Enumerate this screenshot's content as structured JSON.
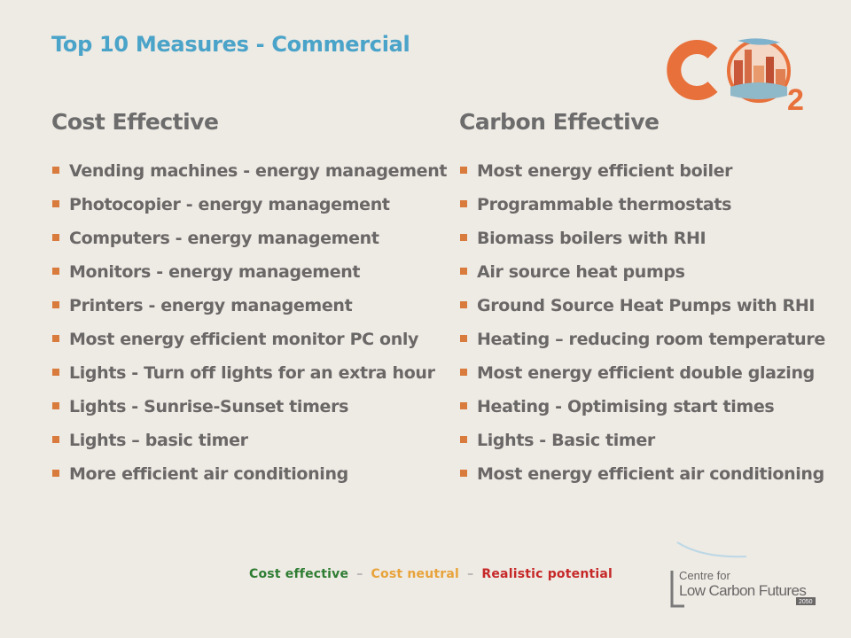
{
  "title": "Top 10 Measures - Commercial",
  "columns": {
    "left": {
      "heading": "Cost Effective",
      "items": [
        "Vending machines - energy management",
        "Photocopier - energy management",
        "Computers - energy management",
        "Monitors - energy management",
        "Printers - energy management",
        "Most energy efficient monitor PC only",
        "Lights - Turn off lights for an extra hour",
        "Lights - Sunrise-Sunset timers",
        "Lights – basic timer",
        "More efficient air conditioning"
      ]
    },
    "right": {
      "heading": "Carbon Effective",
      "items": [
        "Most energy efficient boiler",
        "Programmable thermostats",
        "Biomass boilers with RHI",
        "Air source heat pumps",
        "Ground Source Heat Pumps with RHI",
        "Heating – reducing room temperature",
        "Most energy efficient double glazing",
        "Heating - Optimising start times",
        "Lights - Basic timer",
        "Most energy efficient air conditioning"
      ]
    }
  },
  "legend": {
    "cost_effective": "Cost effective",
    "cost_neutral": "Cost neutral",
    "realistic_potential": "Realistic potential",
    "separator": "–"
  },
  "logos": {
    "co2": {
      "letters": "C",
      "subscript": "2"
    },
    "clcf": {
      "line1": "Centre for",
      "line2": "Low Carbon Futures",
      "year": "2050"
    }
  },
  "colors": {
    "title": "#4aa3c8",
    "heading": "#6d6c6c",
    "text": "#6a6767",
    "bullet": "#d97b3c",
    "cost_effective": "#2e7d32",
    "cost_neutral": "#e8a33a",
    "realistic_potential": "#c62828",
    "co2_orange": "#e8703a"
  }
}
